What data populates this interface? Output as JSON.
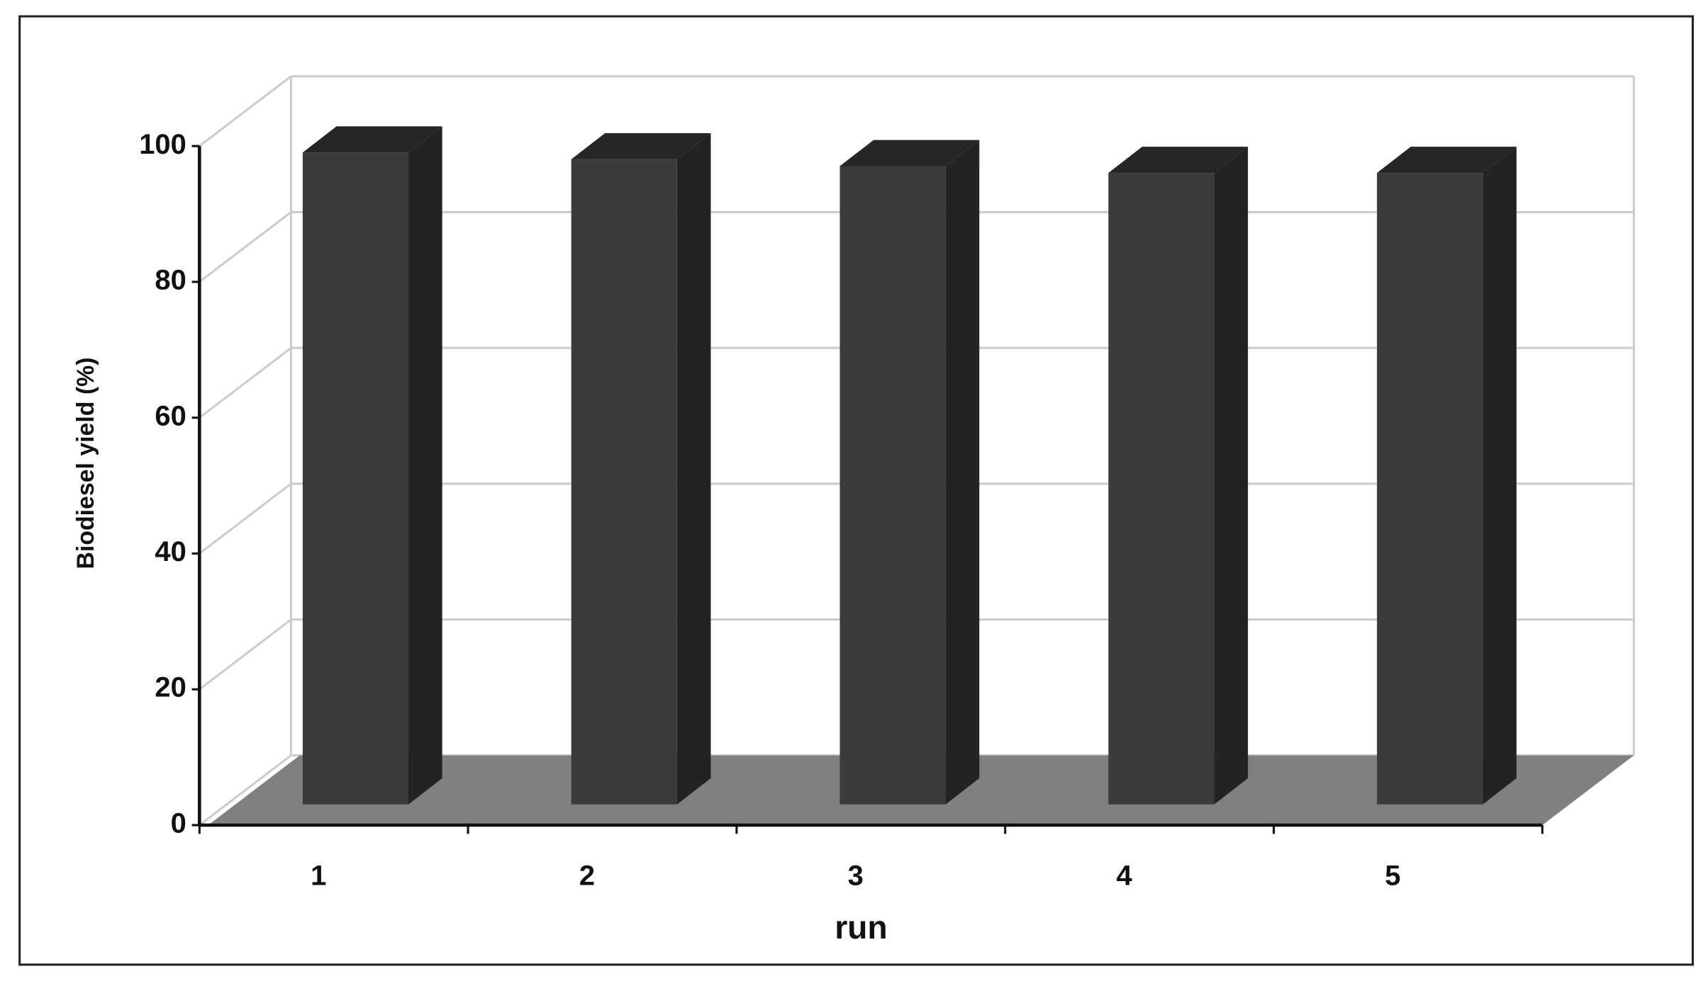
{
  "chart_data": {
    "type": "bar3d",
    "x_label": "run",
    "y_label": "Biodiesel yield (%)",
    "categories": [
      "1",
      "2",
      "3",
      "4",
      "5"
    ],
    "values": [
      96,
      95,
      94,
      93,
      93
    ],
    "color": "#3b3b3b",
    "ylim": [
      0,
      100
    ],
    "yticks": [
      0,
      20,
      40,
      60,
      80,
      100
    ],
    "grid": true
  }
}
